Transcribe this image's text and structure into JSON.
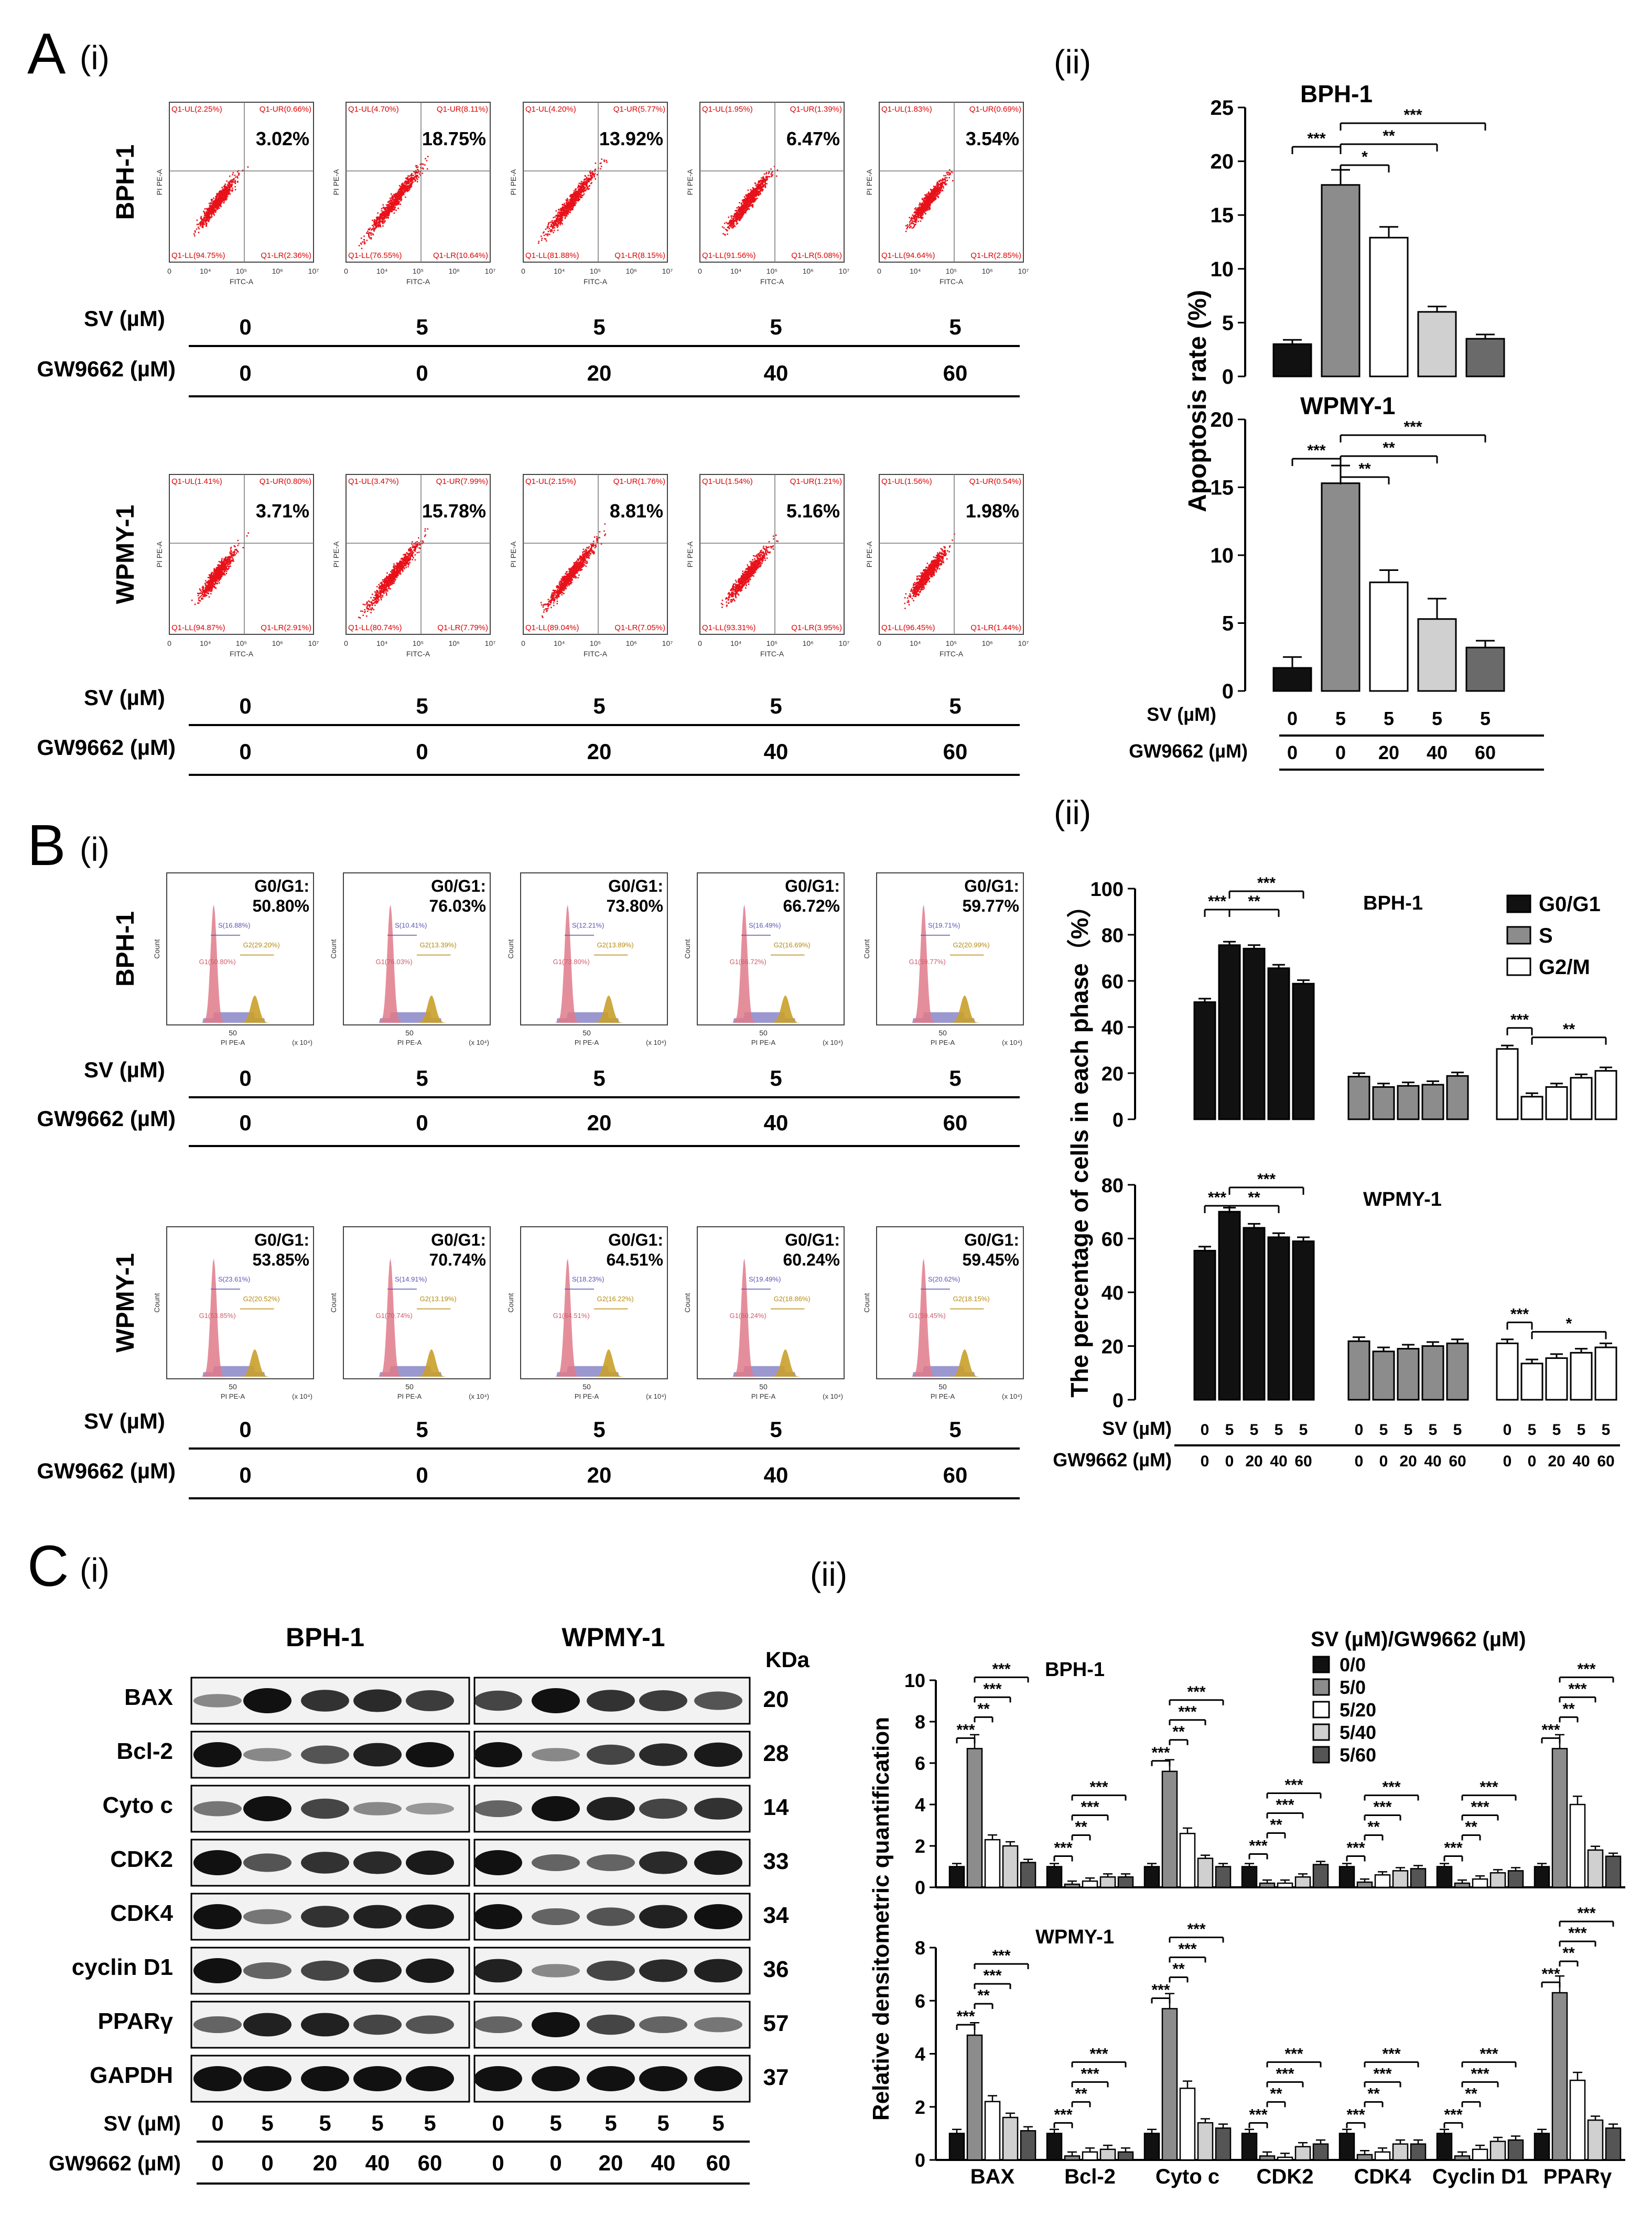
{
  "panels": {
    "A": {
      "letter": "A",
      "sub_i": "(i)",
      "sub_ii": "(ii)"
    },
    "B": {
      "letter": "B",
      "sub_i": "(i)",
      "sub_ii": "(ii)"
    },
    "C": {
      "letter": "C",
      "sub_i": "(i)",
      "sub_ii": "(ii)"
    }
  },
  "treatments": {
    "sv_label": "SV (µM)",
    "gw_label": "GW9662 (µM)",
    "sv": [
      "0",
      "5",
      "5",
      "5",
      "5"
    ],
    "gw": [
      "0",
      "0",
      "20",
      "40",
      "60"
    ]
  },
  "cell_lines": [
    "BPH-1",
    "WPMY-1"
  ],
  "flow_apoptosis": {
    "x_axis": "FITC-A",
    "y_axis": "PI PE-A",
    "ticks": [
      "0",
      "10⁴",
      "10⁵",
      "10⁶",
      "10⁷"
    ],
    "rows": [
      {
        "line": "BPH-1",
        "plots": [
          {
            "ul": "Q1-UL(2.25%)",
            "ur": "Q1-UR(0.66%)",
            "ll": "Q1-LL(94.75%)",
            "lr": "Q1-LR(2.36%)",
            "big": "3.02%"
          },
          {
            "ul": "Q1-UL(4.70%)",
            "ur": "Q1-UR(8.11%)",
            "ll": "Q1-LL(76.55%)",
            "lr": "Q1-LR(10.64%)",
            "big": "18.75%"
          },
          {
            "ul": "Q1-UL(4.20%)",
            "ur": "Q1-UR(5.77%)",
            "ll": "Q1-LL(81.88%)",
            "lr": "Q1-LR(8.15%)",
            "big": "13.92%"
          },
          {
            "ul": "Q1-UL(1.95%)",
            "ur": "Q1-UR(1.39%)",
            "ll": "Q1-LL(91.56%)",
            "lr": "Q1-LR(5.08%)",
            "big": "6.47%"
          },
          {
            "ul": "Q1-UL(1.83%)",
            "ur": "Q1-UR(0.69%)",
            "ll": "Q1-LL(94.64%)",
            "lr": "Q1-LR(2.85%)",
            "big": "3.54%"
          }
        ]
      },
      {
        "line": "WPMY-1",
        "plots": [
          {
            "ul": "Q1-UL(1.41%)",
            "ur": "Q1-UR(0.80%)",
            "ll": "Q1-LL(94.87%)",
            "lr": "Q1-LR(2.91%)",
            "big": "3.71%"
          },
          {
            "ul": "Q1-UL(3.47%)",
            "ur": "Q1-UR(7.99%)",
            "ll": "Q1-LL(80.74%)",
            "lr": "Q1-LR(7.79%)",
            "big": "15.78%"
          },
          {
            "ul": "Q1-UL(2.15%)",
            "ur": "Q1-UR(1.76%)",
            "ll": "Q1-LL(89.04%)",
            "lr": "Q1-LR(7.05%)",
            "big": "8.81%"
          },
          {
            "ul": "Q1-UL(1.54%)",
            "ur": "Q1-UR(1.21%)",
            "ll": "Q1-LL(93.31%)",
            "lr": "Q1-LR(3.95%)",
            "big": "5.16%"
          },
          {
            "ul": "Q1-UL(1.56%)",
            "ur": "Q1-UR(0.54%)",
            "ll": "Q1-LL(96.45%)",
            "lr": "Q1-LR(1.44%)",
            "big": "1.98%"
          }
        ]
      }
    ]
  },
  "cell_cycle": {
    "x_axis": "PI PE-A",
    "x_unit": "(x 10⁴)",
    "y_axis": "Count",
    "x_tick": "50",
    "rows": [
      {
        "line": "BPH-1",
        "plots": [
          {
            "g0": "G0/G1:",
            "v": "50.80%",
            "s": "S(16.88%)",
            "g2": "G2(29.20%)",
            "g1": "G1(50.80%)"
          },
          {
            "g0": "G0/G1:",
            "v": "76.03%",
            "s": "S(10.41%)",
            "g2": "G2(13.39%)",
            "g1": "G1(76.03%)"
          },
          {
            "g0": "G0/G1:",
            "v": "73.80%",
            "s": "S(12.21%)",
            "g2": "G2(13.89%)",
            "g1": "G1(73.80%)"
          },
          {
            "g0": "G0/G1:",
            "v": "66.72%",
            "s": "S(16.49%)",
            "g2": "G2(16.69%)",
            "g1": "G1(66.72%)"
          },
          {
            "g0": "G0/G1:",
            "v": "59.77%",
            "s": "S(19.71%)",
            "g2": "G2(20.99%)",
            "g1": "G1(59.77%)"
          }
        ]
      },
      {
        "line": "WPMY-1",
        "plots": [
          {
            "g0": "G0/G1:",
            "v": "53.85%",
            "s": "S(23.61%)",
            "g2": "G2(20.52%)",
            "g1": "G1(53.85%)"
          },
          {
            "g0": "G0/G1:",
            "v": "70.74%",
            "s": "S(14.91%)",
            "g2": "G2(13.19%)",
            "g1": "G1(70.74%)"
          },
          {
            "g0": "G0/G1:",
            "v": "64.51%",
            "s": "S(18.23%)",
            "g2": "G2(16.22%)",
            "g1": "G1(64.51%)"
          },
          {
            "g0": "G0/G1:",
            "v": "60.24%",
            "s": "S(19.49%)",
            "g2": "G2(18.86%)",
            "g1": "G1(60.24%)"
          },
          {
            "g0": "G0/G1:",
            "v": "59.45%",
            "s": "S(20.62%)",
            "g2": "G2(18.15%)",
            "g1": "G1(59.45%)"
          }
        ]
      }
    ]
  },
  "western": {
    "header_bph": "BPH-1",
    "header_wpmy": "WPMY-1",
    "kda_label": "KDa",
    "proteins": [
      {
        "name": "BAX",
        "kda": "20",
        "bph": [
          0.3,
          1,
          0.8,
          0.85,
          0.75
        ],
        "wpmy": [
          0.7,
          1,
          0.8,
          0.75,
          0.6
        ]
      },
      {
        "name": "Bcl-2",
        "kda": "28",
        "bph": [
          1,
          0.3,
          0.6,
          0.9,
          1
        ],
        "wpmy": [
          1,
          0.3,
          0.7,
          0.85,
          0.95
        ]
      },
      {
        "name": "Cyto c",
        "kda": "14",
        "bph": [
          0.4,
          1,
          0.7,
          0.3,
          0.2
        ],
        "wpmy": [
          0.5,
          1,
          0.9,
          0.7,
          0.8
        ]
      },
      {
        "name": "CDK2",
        "kda": "33",
        "bph": [
          1,
          0.6,
          0.8,
          0.85,
          0.95
        ],
        "wpmy": [
          1,
          0.5,
          0.5,
          0.85,
          0.95
        ]
      },
      {
        "name": "CDK4",
        "kda": "34",
        "bph": [
          1,
          0.4,
          0.8,
          0.9,
          0.95
        ],
        "wpmy": [
          1,
          0.5,
          0.6,
          0.9,
          1
        ]
      },
      {
        "name": "cyclin D1",
        "kda": "36",
        "bph": [
          1,
          0.5,
          0.7,
          0.9,
          0.95
        ],
        "wpmy": [
          0.9,
          0.3,
          0.7,
          0.85,
          0.9
        ]
      },
      {
        "name": "PPARγ",
        "kda": "57",
        "bph": [
          0.5,
          0.9,
          0.9,
          0.7,
          0.6
        ],
        "wpmy": [
          0.5,
          1,
          0.7,
          0.5,
          0.4
        ]
      },
      {
        "name": "GAPDH",
        "kda": "37",
        "bph": [
          1,
          1,
          1,
          1,
          1
        ],
        "wpmy": [
          1,
          1,
          1,
          1,
          1
        ]
      }
    ]
  },
  "chart_data": [
    {
      "type": "bar",
      "id": "A-ii",
      "ylabel": "Apoptosis rate (%)",
      "panels": [
        {
          "title": "BPH-1",
          "ylim": [
            0,
            25
          ],
          "ticks": [
            "0",
            "5",
            "10",
            "15",
            "20",
            "25"
          ],
          "values": [
            3.0,
            17.8,
            12.9,
            6.0,
            3.5
          ],
          "errors": [
            0.4,
            1.4,
            1.0,
            0.5,
            0.4
          ],
          "sig": [
            "***",
            "*",
            "**",
            "***"
          ]
        },
        {
          "title": "WPMY-1",
          "ylim": [
            0,
            20
          ],
          "ticks": [
            "0",
            "5",
            "10",
            "15",
            "20"
          ],
          "values": [
            1.7,
            15.3,
            8.0,
            5.3,
            3.2
          ],
          "errors": [
            0.8,
            1.3,
            0.9,
            1.5,
            0.5
          ],
          "sig": [
            "***",
            "**",
            "**",
            "***"
          ]
        }
      ],
      "bar_colors": [
        "#111111",
        "#8c8c8c",
        "#ffffff",
        "#d0d0d0",
        "#6a6a6a"
      ]
    },
    {
      "type": "bar",
      "id": "B-ii",
      "ylabel": "The percentage of cells in each phase（%）",
      "legend": [
        "G0/G1",
        "S",
        "G2/M"
      ],
      "panels": [
        {
          "title": "BPH-1",
          "ylim": [
            0,
            100
          ],
          "ticks": [
            "0",
            "20",
            "40",
            "60",
            "80",
            "100"
          ],
          "g0g1": [
            50.8,
            75.5,
            74.0,
            65.5,
            58.8
          ],
          "s": [
            18.5,
            14.0,
            14.5,
            15.0,
            18.8
          ],
          "g2m": [
            30.5,
            9.8,
            14.0,
            18.0,
            21.0
          ],
          "sig_g0": [
            "***",
            "**",
            "***"
          ],
          "sig_g2": [
            "***",
            "**"
          ]
        },
        {
          "title": "WPMY-1",
          "ylim": [
            0,
            80
          ],
          "ticks": [
            "0",
            "20",
            "40",
            "60",
            "80"
          ],
          "g0g1": [
            55.5,
            70.0,
            64.0,
            60.5,
            59.0
          ],
          "s": [
            21.8,
            18.0,
            19.0,
            20.0,
            21.0
          ],
          "g2m": [
            21.0,
            13.5,
            15.5,
            17.5,
            19.5
          ],
          "sig_g0": [
            "***",
            "**",
            "***"
          ],
          "sig_g2": [
            "***",
            "*"
          ]
        }
      ]
    },
    {
      "type": "bar",
      "id": "C-ii",
      "ylabel": "Relative densitometric quantification",
      "legend_title": "SV (µM)/GW9662 (µM)",
      "legend": [
        "0/0",
        "5/0",
        "5/20",
        "5/40",
        "5/60"
      ],
      "categories": [
        "BAX",
        "Bcl-2",
        "Cyto c",
        "CDK2",
        "CDK4",
        "Cyclin D1",
        "PPARγ"
      ],
      "panels": [
        {
          "title": "BPH-1",
          "ylim": [
            0,
            10
          ],
          "ticks": [
            "0",
            "2",
            "4",
            "6",
            "8",
            "10"
          ],
          "values": [
            [
              1,
              6.7,
              2.3,
              2.0,
              1.2
            ],
            [
              1,
              0.15,
              0.3,
              0.5,
              0.5
            ],
            [
              1,
              5.6,
              2.6,
              1.4,
              1.0
            ],
            [
              1,
              0.2,
              0.2,
              0.5,
              1.1
            ],
            [
              1,
              0.25,
              0.6,
              0.8,
              0.9
            ],
            [
              1,
              0.2,
              0.4,
              0.7,
              0.8
            ],
            [
              1,
              6.7,
              4.0,
              1.8,
              1.5
            ]
          ]
        },
        {
          "title": "WPMY-1",
          "ylim": [
            0,
            8
          ],
          "ticks": [
            "0",
            "2",
            "4",
            "6",
            "8"
          ],
          "values": [
            [
              1,
              4.7,
              2.2,
              1.6,
              1.1
            ],
            [
              1,
              0.15,
              0.3,
              0.4,
              0.3
            ],
            [
              1,
              5.7,
              2.7,
              1.4,
              1.2
            ],
            [
              1,
              0.15,
              0.1,
              0.5,
              0.6
            ],
            [
              1,
              0.2,
              0.3,
              0.6,
              0.6
            ],
            [
              1,
              0.15,
              0.4,
              0.7,
              0.75
            ],
            [
              1,
              6.3,
              3.0,
              1.5,
              1.2
            ]
          ]
        }
      ],
      "sig": [
        "***",
        "***",
        "**",
        "***"
      ]
    }
  ]
}
